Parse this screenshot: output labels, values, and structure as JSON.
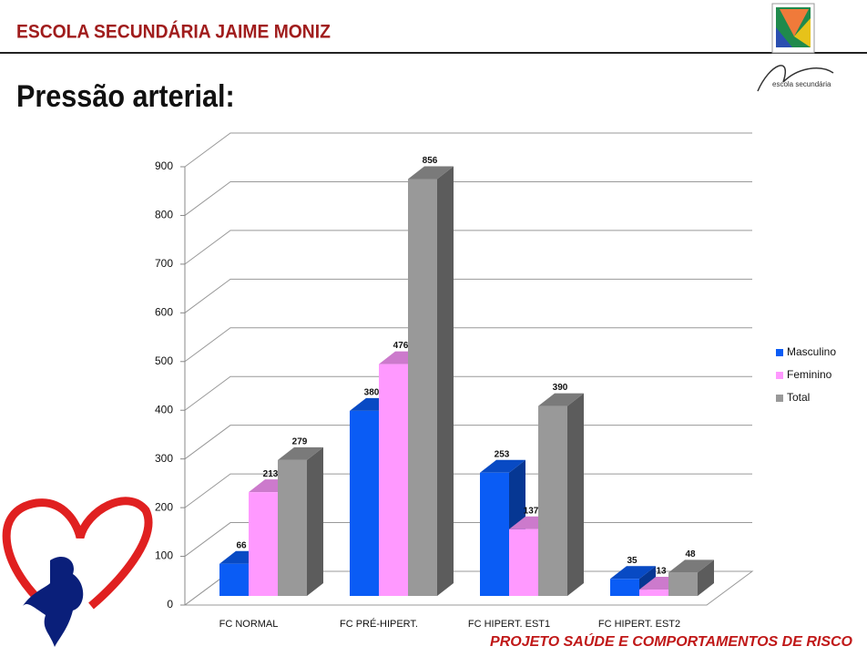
{
  "header": {
    "school": "ESCOLA SECUNDÁRIA JAIME MONIZ",
    "title": "Pressão arterial:",
    "logo_caption": "escola secundária",
    "footer": "PROJETO SAÚDE E COMPORTAMENTOS DE RISCO"
  },
  "chart_data": {
    "type": "bar",
    "categories": [
      "FC NORMAL",
      "FC PRÉ-HIPERT.",
      "FC HIPERT. EST1",
      "FC HIPERT. EST2"
    ],
    "series": [
      {
        "name": "Masculino",
        "color": "#0a5cf5",
        "values": [
          66,
          380,
          253,
          35
        ]
      },
      {
        "name": "Feminino",
        "color": "#ff99ff",
        "values": [
          213,
          476,
          137,
          13
        ]
      },
      {
        "name": "Total",
        "color": "#999999",
        "values": [
          279,
          856,
          390,
          48
        ]
      }
    ],
    "ylim": [
      0,
      900
    ],
    "yticks": [
      0,
      100,
      200,
      300,
      400,
      500,
      600,
      700,
      800,
      900
    ],
    "grid": true,
    "legend": "right"
  }
}
